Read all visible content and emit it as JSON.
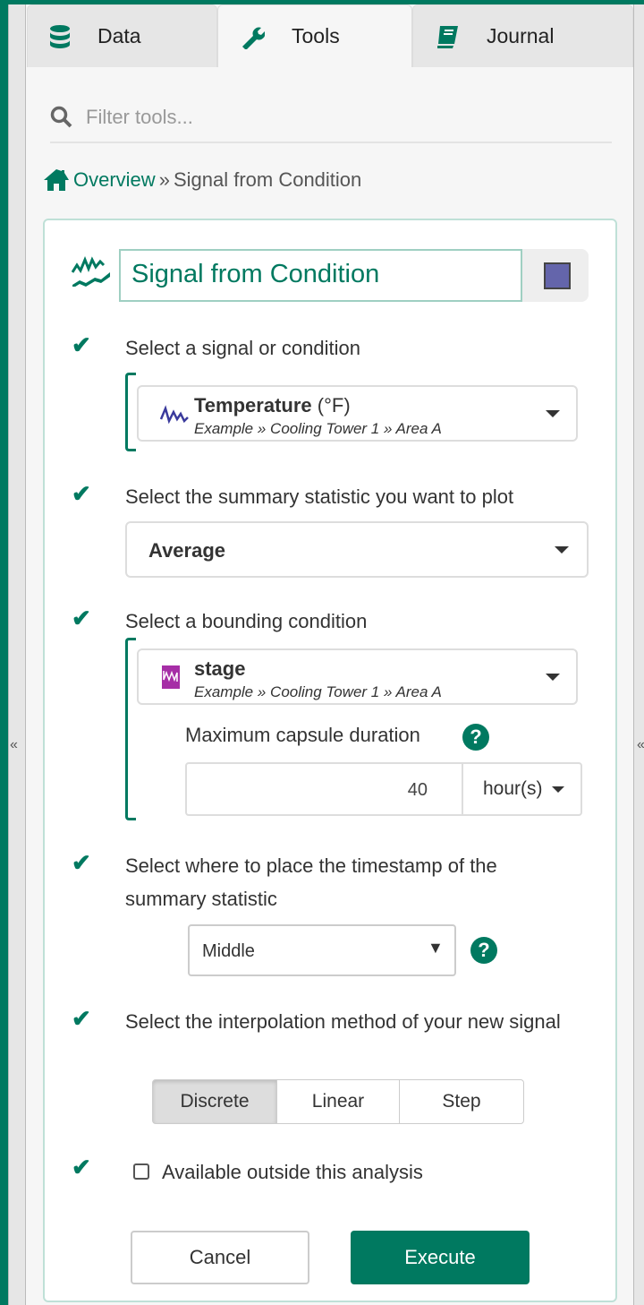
{
  "tabs": [
    {
      "label": "Data",
      "icon": "database-icon"
    },
    {
      "label": "Tools",
      "icon": "wrench-icon"
    },
    {
      "label": "Journal",
      "icon": "book-icon"
    }
  ],
  "search": {
    "placeholder": "Filter tools..."
  },
  "breadcrumb": {
    "home": "Overview",
    "separator": "»",
    "current": "Signal from Condition"
  },
  "tool": {
    "name": "Signal from Condition",
    "color": "#6465ab"
  },
  "steps": {
    "signal": {
      "label": "Select a signal or condition",
      "name": "Temperature",
      "unit": "(°F)",
      "path": "Example » Cooling Tower 1 » Area A"
    },
    "statistic": {
      "label": "Select the summary statistic you want to plot",
      "value": "Average"
    },
    "bounding": {
      "label": "Select a bounding condition",
      "name": "stage",
      "path": "Example » Cooling Tower 1 » Area A",
      "duration_label": "Maximum capsule duration",
      "duration_value": "40",
      "duration_unit": "hour(s)"
    },
    "timestamp": {
      "label": "Select where to place the timestamp of the summary statistic",
      "value": "Middle"
    },
    "interpolation": {
      "label": "Select the interpolation method of your new signal",
      "options": [
        "Discrete",
        "Linear",
        "Step"
      ],
      "selected": "Discrete"
    },
    "scope": {
      "label": "Available outside this analysis",
      "checked": false
    }
  },
  "buttons": {
    "cancel": "Cancel",
    "execute": "Execute"
  },
  "colors": {
    "accent": "#007960",
    "signal": "#3a3a9c",
    "condition": "#a62ea6"
  },
  "collapse_glyph": "«"
}
